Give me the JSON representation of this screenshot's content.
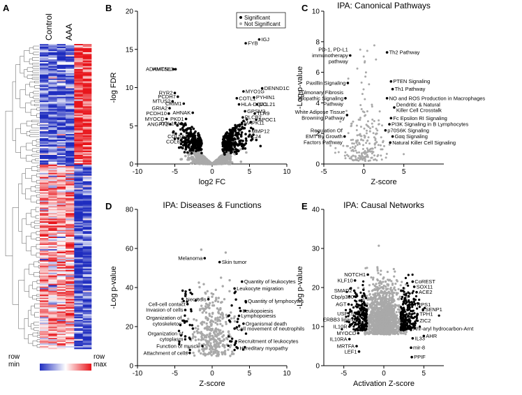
{
  "panels": {
    "A": "A",
    "B": "B",
    "C": "C",
    "D": "D",
    "E": "E"
  },
  "heatmap": {
    "col_labels": [
      "Control",
      "AAA"
    ],
    "legend": {
      "min_label": "row\nmin",
      "max_label": "row\nmax"
    },
    "colors": {
      "low": "#1f2dbf",
      "mid": "#ffffff",
      "high": "#e8151b"
    }
  },
  "colors": {
    "significant": "#000000",
    "not_significant": "#a9a9a9"
  },
  "chart_data": [
    {
      "id": "B",
      "type": "scatter",
      "title": "",
      "xlabel": "log2 FC",
      "ylabel": "-log FDR",
      "xlim": [
        -10,
        10
      ],
      "ylim": [
        0,
        20
      ],
      "xticks": [
        -10,
        -5,
        0,
        5,
        10
      ],
      "yticks": [
        0,
        5,
        10,
        15,
        20
      ],
      "legend": {
        "position": "top-right",
        "entries": [
          "Significant",
          "Not Significant"
        ]
      },
      "labels": [
        {
          "text": "FYB",
          "x": 4.5,
          "y": 15.8
        },
        {
          "text": "IGJ",
          "x": 6.3,
          "y": 16.3
        },
        {
          "text": "HMCN1",
          "x": -5.2,
          "y": 12.4
        },
        {
          "text": "ADAMTSL3",
          "x": -4.9,
          "y": 12.4
        },
        {
          "text": "RYR2",
          "x": -5.0,
          "y": 9.3
        },
        {
          "text": "PCDH7",
          "x": -4.6,
          "y": 8.8
        },
        {
          "text": "MTUS2",
          "x": -5.3,
          "y": 8.2
        },
        {
          "text": "CRIM1",
          "x": -3.8,
          "y": 7.9
        },
        {
          "text": "GRIA2",
          "x": -5.7,
          "y": 7.3
        },
        {
          "text": "PCDH10",
          "x": -5.8,
          "y": 6.6
        },
        {
          "text": "AHNAK",
          "x": -2.6,
          "y": 6.7
        },
        {
          "text": "MYOCD",
          "x": -6.1,
          "y": 5.9
        },
        {
          "text": "PKD1",
          "x": -3.5,
          "y": 5.9
        },
        {
          "text": "ANGPT1",
          "x": -5.6,
          "y": 5.2
        },
        {
          "text": "COL14A1",
          "x": -3.6,
          "y": 5.3
        },
        {
          "text": "COL5A2",
          "x": -3.0,
          "y": 3.6
        },
        {
          "text": "COL6A1",
          "x": -3.2,
          "y": 2.9
        },
        {
          "text": "DENND1C",
          "x": 6.7,
          "y": 9.9
        },
        {
          "text": "MYO1G",
          "x": 4.2,
          "y": 9.5
        },
        {
          "text": "PYHIN1",
          "x": 5.6,
          "y": 8.7
        },
        {
          "text": "COTL1",
          "x": 3.3,
          "y": 8.6
        },
        {
          "text": "HLA-DQA1",
          "x": 3.6,
          "y": 7.8
        },
        {
          "text": "CCL21",
          "x": 6.0,
          "y": 7.8
        },
        {
          "text": "GPSM3",
          "x": 4.4,
          "y": 6.9
        },
        {
          "text": "TLR9",
          "x": 5.7,
          "y": 6.6
        },
        {
          "text": "PLCB2",
          "x": 4.1,
          "y": 6.1
        },
        {
          "text": "APOC1",
          "x": 5.9,
          "y": 5.8
        },
        {
          "text": "MAPK11",
          "x": 4.0,
          "y": 5.4
        },
        {
          "text": "MMP12",
          "x": 5.0,
          "y": 4.3
        },
        {
          "text": "IL24",
          "x": 4.9,
          "y": 3.6
        }
      ]
    },
    {
      "id": "C",
      "type": "scatter",
      "title": "IPA: Canonical Pathways",
      "xlabel": "Z-score",
      "ylabel": "-Log p-value",
      "xlim": [
        -5,
        10
      ],
      "ylim": [
        0,
        10
      ],
      "xticks": [
        -5,
        0,
        5
      ],
      "yticks": [
        0,
        2,
        4,
        6,
        8,
        10
      ],
      "labels": [
        {
          "text": "PD-1, PD-L1\nimmunotherapy\npathway",
          "x": -1.7,
          "y": 7.1
        },
        {
          "text": "Th2 Pathway",
          "x": 2.9,
          "y": 7.3
        },
        {
          "text": "Paxillin Signaling",
          "x": -2.0,
          "y": 5.3
        },
        {
          "text": "PTEN Signaling",
          "x": 3.4,
          "y": 5.4
        },
        {
          "text": "Th1 Pathway",
          "x": 3.6,
          "y": 4.9
        },
        {
          "text": "Pulmonary Fibrosis\nIdiopathic Signaling\nPathway",
          "x": -2.3,
          "y": 4.3
        },
        {
          "text": "NO and ROS Production in Macrophages",
          "x": 2.9,
          "y": 4.3
        },
        {
          "text": "Dendritic & Natural\nKiller Cell Crosstalk",
          "x": 3.8,
          "y": 3.7
        },
        {
          "text": "White Adipose Tissue\nBrowning Pathway",
          "x": -2.1,
          "y": 3.2
        },
        {
          "text": "Fc Epsilon RI Signaling",
          "x": 3.4,
          "y": 3.0
        },
        {
          "text": "PI3K Signaling in B Lymphocytes",
          "x": 3.2,
          "y": 2.6
        },
        {
          "text": "p70S6K Signaling",
          "x": 2.7,
          "y": 2.2
        },
        {
          "text": "Regulation Of\nEMT By Growth\nFactors Pathway",
          "x": -2.4,
          "y": 1.8
        },
        {
          "text": "Gαq Signaling",
          "x": 3.6,
          "y": 1.8
        },
        {
          "text": "Natural Killer Cell Signaling",
          "x": 3.3,
          "y": 1.4
        }
      ]
    },
    {
      "id": "D",
      "type": "scatter",
      "title": "IPA: Diseases & Functions",
      "xlabel": "Z-score",
      "ylabel": "-Log p-value",
      "xlim": [
        -10,
        10
      ],
      "ylim": [
        0,
        80
      ],
      "xticks": [
        -10,
        -5,
        0,
        5,
        10
      ],
      "yticks": [
        0,
        20,
        40,
        60,
        80
      ],
      "labels": [
        {
          "text": "Melanoma",
          "x": -1.0,
          "y": 55.0
        },
        {
          "text": "Skin tumor",
          "x": 1.0,
          "y": 53.0
        },
        {
          "text": "Quantity of leukocytes",
          "x": 4.0,
          "y": 43.0
        },
        {
          "text": "Leukocyte migration",
          "x": 3.0,
          "y": 39.5
        },
        {
          "text": "Necrosis",
          "x": -0.5,
          "y": 34.0
        },
        {
          "text": "Quantity of lymphocytes",
          "x": 4.5,
          "y": 33.0
        },
        {
          "text": "Cell-cell contact",
          "x": -3.3,
          "y": 31.5
        },
        {
          "text": "Invasion of cells",
          "x": -3.6,
          "y": 28.5
        },
        {
          "text": "Leukopoiesis",
          "x": 3.8,
          "y": 28.0
        },
        {
          "text": "Lymphopoiesis",
          "x": 3.6,
          "y": 25.5
        },
        {
          "text": "Organization of\ncytoskeleton",
          "x": -3.8,
          "y": 23.0
        },
        {
          "text": "Organismal death",
          "x": 4.2,
          "y": 21.5
        },
        {
          "text": "Cell movement of neutrophils",
          "x": 3.0,
          "y": 19.0
        },
        {
          "text": "Organization of\ncytoplasm",
          "x": -3.6,
          "y": 15.0
        },
        {
          "text": "Recruitment of leukocytes",
          "x": 3.2,
          "y": 12.5
        },
        {
          "text": "Function of muscle",
          "x": -1.3,
          "y": 10.0
        },
        {
          "text": "Hereditary myopathy",
          "x": 3.4,
          "y": 9.0
        },
        {
          "text": "Attachment of cells",
          "x": -3.0,
          "y": 6.5
        }
      ]
    },
    {
      "id": "E",
      "type": "scatter",
      "title": "IPA: Causal Networks",
      "xlabel": "Activation Z-score",
      "ylabel": "-Log p-value",
      "xlim": [
        -7.5,
        7.5
      ],
      "ylim": [
        0,
        40
      ],
      "xticks": [
        -5,
        0,
        5
      ],
      "yticks": [
        0,
        10,
        20,
        30,
        40
      ],
      "labels": [
        {
          "text": "NOTCH1",
          "x": -2.0,
          "y": 23.3
        },
        {
          "text": "KLF10",
          "x": -3.6,
          "y": 21.8
        },
        {
          "text": "CoREST",
          "x": 3.6,
          "y": 21.5
        },
        {
          "text": "SOX11",
          "x": 3.8,
          "y": 20.2
        },
        {
          "text": "ACE2",
          "x": 4.1,
          "y": 18.8
        },
        {
          "text": "SMAD2",
          "x": -3.7,
          "y": 19.2
        },
        {
          "text": "Cbp/p300",
          "x": -3.5,
          "y": 17.6
        },
        {
          "text": "TRPS1",
          "x": 3.5,
          "y": 15.6
        },
        {
          "text": "AGT",
          "x": -4.4,
          "y": 15.7
        },
        {
          "text": "SENP1",
          "x": 4.9,
          "y": 14.4
        },
        {
          "text": "TPH1",
          "x": 4.2,
          "y": 13.2
        },
        {
          "text": "USP15",
          "x": -3.5,
          "y": 13.3
        },
        {
          "text": "ERBB3 ligand",
          "x": -3.3,
          "y": 11.8
        },
        {
          "text": "ZIC2",
          "x": 4.2,
          "y": 11.5
        },
        {
          "text": "IL10R",
          "x": -4.3,
          "y": 10.0
        },
        {
          "text": "Ahr-aryl hydrocarbon-Arnt",
          "x": 3.4,
          "y": 9.5
        },
        {
          "text": "MYOCD",
          "x": -3.2,
          "y": 8.3
        },
        {
          "text": "AHR",
          "x": 5.0,
          "y": 7.6
        },
        {
          "text": "IL10RA",
          "x": -4.3,
          "y": 6.8
        },
        {
          "text": "IL33",
          "x": 3.6,
          "y": 7.0
        },
        {
          "text": "MRTFA",
          "x": -3.4,
          "y": 5.0
        },
        {
          "text": "mir-8",
          "x": 3.4,
          "y": 4.6
        },
        {
          "text": "LEF1",
          "x": -3.1,
          "y": 3.6
        },
        {
          "text": "PPIF",
          "x": 3.5,
          "y": 2.2
        }
      ]
    }
  ]
}
